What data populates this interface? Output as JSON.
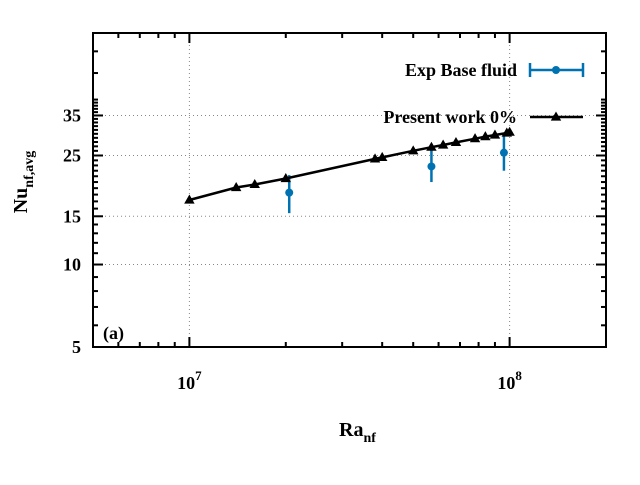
{
  "chart_data": {
    "type": "scatter",
    "x_scale": "log",
    "y_scale": "log",
    "xlim": [
      5000000,
      200000000
    ],
    "ylim": [
      5,
      70
    ],
    "xticks": [
      {
        "value": 10000000,
        "base": "10",
        "exp": "7"
      },
      {
        "value": 100000000,
        "base": "10",
        "exp": "8"
      }
    ],
    "yticks": [
      {
        "value": 5,
        "label": "5"
      },
      {
        "value": 10,
        "label": "10"
      },
      {
        "value": 15,
        "label": "15"
      },
      {
        "value": 25,
        "label": "25"
      },
      {
        "value": 35,
        "label": "35"
      }
    ],
    "xlabel": {
      "main": "Ra",
      "sub": "nf"
    },
    "ylabel": {
      "main": "Nu",
      "sub": "nf,avg"
    },
    "panel_label": "(a)",
    "grid": true,
    "legend_position": "top-right",
    "series": [
      {
        "name": "Exp Base fluid",
        "style": "errorbar",
        "color": "#0072b2",
        "points": [
          {
            "x": 20500000,
            "y": 18.3,
            "ylow": 15.4,
            "yhigh": 21.2
          },
          {
            "x": 57000000,
            "y": 22.8,
            "ylow": 20.0,
            "yhigh": 26.9
          },
          {
            "x": 96000000,
            "y": 25.6,
            "ylow": 22.0,
            "yhigh": 30.1
          }
        ]
      },
      {
        "name": "Present work 0%",
        "style": "line-triangle",
        "color": "#000000",
        "points": [
          {
            "x": 10000000,
            "y": 17.2
          },
          {
            "x": 14000000,
            "y": 19.1
          },
          {
            "x": 16000000,
            "y": 19.6
          },
          {
            "x": 20000000,
            "y": 20.6
          },
          {
            "x": 38000000,
            "y": 24.3
          },
          {
            "x": 40000000,
            "y": 24.6
          },
          {
            "x": 50000000,
            "y": 26.0
          },
          {
            "x": 57000000,
            "y": 26.8
          },
          {
            "x": 62000000,
            "y": 27.3
          },
          {
            "x": 68000000,
            "y": 27.9
          },
          {
            "x": 78000000,
            "y": 28.8
          },
          {
            "x": 84000000,
            "y": 29.3
          },
          {
            "x": 90000000,
            "y": 29.7
          },
          {
            "x": 98000000,
            "y": 30.2
          },
          {
            "x": 100000000,
            "y": 30.4
          }
        ]
      }
    ]
  }
}
